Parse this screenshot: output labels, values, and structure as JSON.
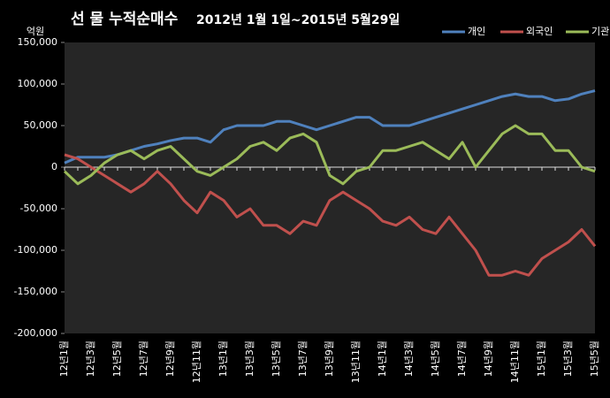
{
  "chart_data": {
    "type": "line",
    "title": "선 물 누적순매수",
    "subtitle": "2012년 1월 1일~2015년 5월29일",
    "y_label": "억원",
    "categories": [
      "12년1월",
      null,
      "12년3월",
      null,
      "12년5월",
      null,
      "12년7월",
      null,
      "12년9월",
      null,
      "12년11월",
      null,
      "13년1월",
      null,
      "13년3월",
      null,
      "13년5월",
      null,
      "13년7월",
      null,
      "13년9월",
      null,
      "13년11월",
      null,
      "14년1월",
      null,
      "14년3월",
      null,
      "14년5월",
      null,
      "14년7월",
      null,
      "14년9월",
      null,
      "14년11월",
      null,
      "15년1월",
      null,
      "15년3월",
      null,
      "15년5월"
    ],
    "series": [
      {
        "name": "개인",
        "color": "#4f81bd",
        "values": [
          5000,
          12000,
          12000,
          12000,
          15000,
          20000,
          25000,
          28000,
          32000,
          35000,
          35000,
          30000,
          45000,
          50000,
          50000,
          50000,
          55000,
          55000,
          50000,
          45000,
          50000,
          55000,
          60000,
          60000,
          50000,
          50000,
          50000,
          55000,
          60000,
          65000,
          70000,
          75000,
          80000,
          85000,
          88000,
          85000,
          85000,
          80000,
          82000,
          88000,
          92000
        ]
      },
      {
        "name": "외국인",
        "color": "#c0504d",
        "values": [
          15000,
          10000,
          0,
          -10000,
          -20000,
          -30000,
          -20000,
          -5000,
          -20000,
          -40000,
          -55000,
          -30000,
          -40000,
          -60000,
          -50000,
          -70000,
          -70000,
          -80000,
          -65000,
          -70000,
          -40000,
          -30000,
          -40000,
          -50000,
          -65000,
          -70000,
          -60000,
          -75000,
          -80000,
          -60000,
          -80000,
          -100000,
          -130000,
          -130000,
          -125000,
          -130000,
          -110000,
          -100000,
          -90000,
          -75000,
          -95000
        ]
      },
      {
        "name": "기관",
        "color": "#9bbb59",
        "values": [
          -5000,
          -20000,
          -10000,
          5000,
          15000,
          20000,
          10000,
          20000,
          25000,
          10000,
          -5000,
          -10000,
          0,
          10000,
          25000,
          30000,
          20000,
          35000,
          40000,
          30000,
          -10000,
          -20000,
          -5000,
          0,
          20000,
          20000,
          25000,
          30000,
          20000,
          10000,
          30000,
          0,
          20000,
          40000,
          50000,
          40000,
          40000,
          20000,
          20000,
          0,
          -5000
        ]
      }
    ],
    "ylim": [
      -200000,
      150000
    ],
    "yticks": [
      {
        "value": -200000,
        "label": "-200,000"
      },
      {
        "value": -150000,
        "label": "-150,000"
      },
      {
        "value": -100000,
        "label": "-100,000"
      },
      {
        "value": -50000,
        "label": "-50,000"
      },
      0,
      {
        "value": 50000,
        "label": "50,000"
      },
      {
        "value": 100000,
        "label": "100,000"
      },
      {
        "value": 150000,
        "label": "150,000"
      }
    ],
    "legend": "top-right"
  }
}
